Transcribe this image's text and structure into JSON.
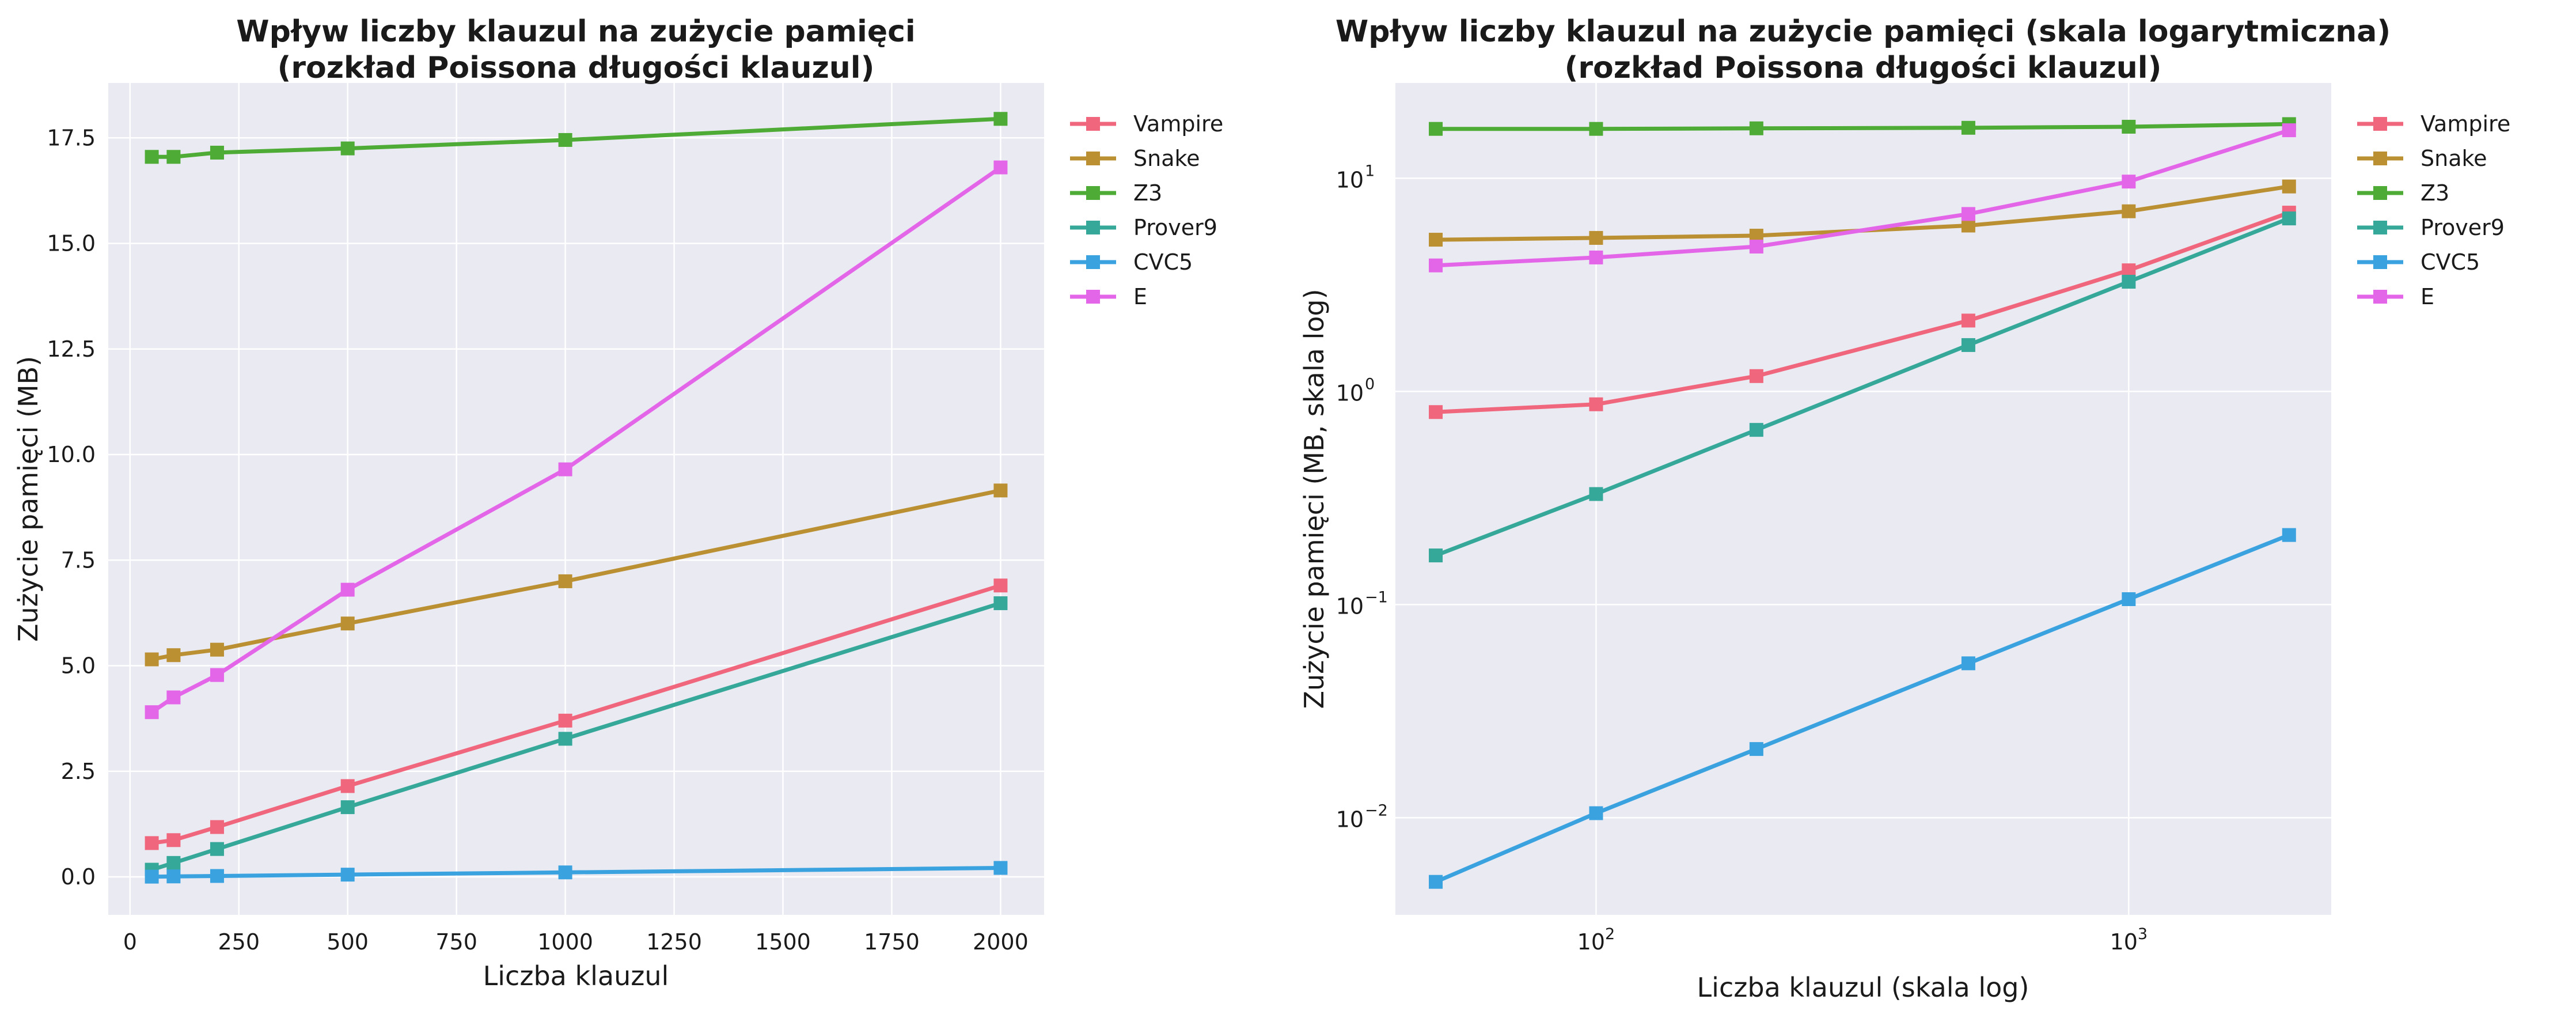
{
  "chart_data": [
    {
      "type": "line",
      "title": "Wpływ liczby klauzul na zużycie pamięci",
      "subtitle": "(rozkład Poissona długości klauzul)",
      "xlabel": "Liczba klauzul",
      "ylabel": "Zużycie pamięci (MB)",
      "xscale": "linear",
      "yscale": "linear",
      "xlim": [
        -50,
        2100
      ],
      "ylim": [
        -0.9,
        18.8
      ],
      "xticks": [
        0,
        250,
        500,
        750,
        1000,
        1250,
        1500,
        1750,
        2000
      ],
      "xtick_labels": [
        "0",
        "250",
        "500",
        "750",
        "1000",
        "1250",
        "1500",
        "1750",
        "2000"
      ],
      "yticks": [
        0.0,
        2.5,
        5.0,
        7.5,
        10.0,
        12.5,
        15.0,
        17.5
      ],
      "ytick_labels": [
        "0.0",
        "2.5",
        "5.0",
        "7.5",
        "10.0",
        "12.5",
        "15.0",
        "17.5"
      ],
      "grid": true,
      "legend": "outside-upper-right",
      "x": [
        50,
        100,
        200,
        500,
        1000,
        2000
      ],
      "series": [
        {
          "name": "Vampire",
          "color": "#f0677d",
          "values": [
            0.8,
            0.87,
            1.18,
            2.15,
            3.7,
            6.9
          ]
        },
        {
          "name": "Snake",
          "color": "#bb9033",
          "values": [
            5.15,
            5.25,
            5.38,
            6.0,
            7.0,
            9.15
          ]
        },
        {
          "name": "Z3",
          "color": "#4eab35",
          "values": [
            17.05,
            17.05,
            17.15,
            17.25,
            17.45,
            17.95
          ]
        },
        {
          "name": "Prover9",
          "color": "#35a89a",
          "values": [
            0.17,
            0.33,
            0.66,
            1.65,
            3.27,
            6.48
          ]
        },
        {
          "name": "CVC5",
          "color": "#3ba2e0",
          "values": [
            0.005,
            0.0105,
            0.021,
            0.053,
            0.106,
            0.212
          ]
        },
        {
          "name": "E",
          "color": "#e466e8",
          "values": [
            3.9,
            4.25,
            4.78,
            6.8,
            9.65,
            16.8
          ]
        }
      ]
    },
    {
      "type": "line",
      "title": "Wpływ liczby klauzul na zużycie pamięci (skala logarytmiczna)",
      "subtitle": "(rozkład Poissona długości klauzul)",
      "xlabel": "Liczba klauzul (skala log)",
      "ylabel": "Zużycie pamięci (MB, skala log)",
      "xscale": "log",
      "yscale": "log",
      "xlim": [
        42,
        2400
      ],
      "ylim": [
        0.0035,
        28
      ],
      "xticks": [
        100,
        1000
      ],
      "xtick_labels": [
        {
          "base": "10",
          "exp": "2"
        },
        {
          "base": "10",
          "exp": "3"
        }
      ],
      "yticks": [
        0.01,
        0.1,
        1,
        10
      ],
      "ytick_labels": [
        {
          "base": "10",
          "exp": "−2"
        },
        {
          "base": "10",
          "exp": "−1"
        },
        {
          "base": "10",
          "exp": "0"
        },
        {
          "base": "10",
          "exp": "1"
        }
      ],
      "grid": true,
      "legend": "outside-upper-right",
      "x": [
        50,
        100,
        200,
        500,
        1000,
        2000
      ],
      "series": [
        {
          "name": "Vampire",
          "color": "#f0677d",
          "values": [
            0.8,
            0.87,
            1.18,
            2.15,
            3.7,
            6.9
          ]
        },
        {
          "name": "Snake",
          "color": "#bb9033",
          "values": [
            5.15,
            5.25,
            5.38,
            6.0,
            7.0,
            9.15
          ]
        },
        {
          "name": "Z3",
          "color": "#4eab35",
          "values": [
            17.05,
            17.05,
            17.15,
            17.25,
            17.45,
            17.95
          ]
        },
        {
          "name": "Prover9",
          "color": "#35a89a",
          "values": [
            0.17,
            0.33,
            0.66,
            1.65,
            3.27,
            6.48
          ]
        },
        {
          "name": "CVC5",
          "color": "#3ba2e0",
          "values": [
            0.005,
            0.0105,
            0.021,
            0.053,
            0.106,
            0.212
          ]
        },
        {
          "name": "E",
          "color": "#e466e8",
          "values": [
            3.9,
            4.25,
            4.78,
            6.8,
            9.65,
            16.8
          ]
        }
      ]
    }
  ]
}
